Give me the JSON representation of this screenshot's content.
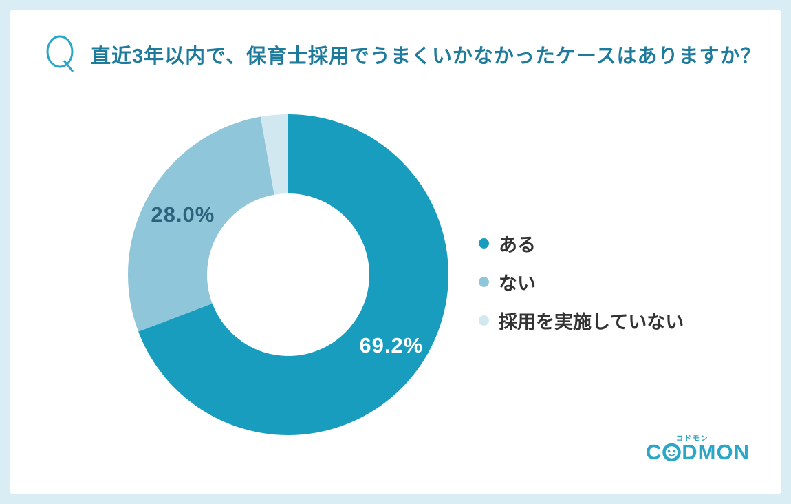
{
  "page": {
    "background": "#D9EDF4",
    "card_background": "#FFFFFF"
  },
  "question": {
    "icon_letter": "Q",
    "icon_color": "#2AA7C7",
    "title": "直近3年以内で、保育士採用でうまくいかなかったケースはありますか？",
    "title_color": "#1E7B9C"
  },
  "chart_data": {
    "type": "pie",
    "subtype": "donut",
    "title": "直近3年以内で、保育士採用でうまくいかなかったケースはありますか？",
    "categories": [
      "ある",
      "ない",
      "採用を実施していない"
    ],
    "values": [
      69.2,
      28.0,
      2.8
    ],
    "total": 100,
    "colors": [
      "#189DBF",
      "#8FC6D9",
      "#D2E8F1"
    ],
    "start_angle_deg": -90,
    "direction": "clockwise",
    "inner_radius_ratio": 0.5,
    "legend_position": "right",
    "slice_labels": [
      {
        "slice": 0,
        "text": "69.2%",
        "color": "#FFFFFF",
        "radius": 182
      },
      {
        "slice": 1,
        "text": "28.0%",
        "color": "#2C637C",
        "radius": 176
      }
    ]
  },
  "legend": {
    "text_color": "#333333"
  },
  "logo": {
    "prefix": "C",
    "suffix": "DMON",
    "kana": "コドモン",
    "color": "#2AA7C7"
  }
}
